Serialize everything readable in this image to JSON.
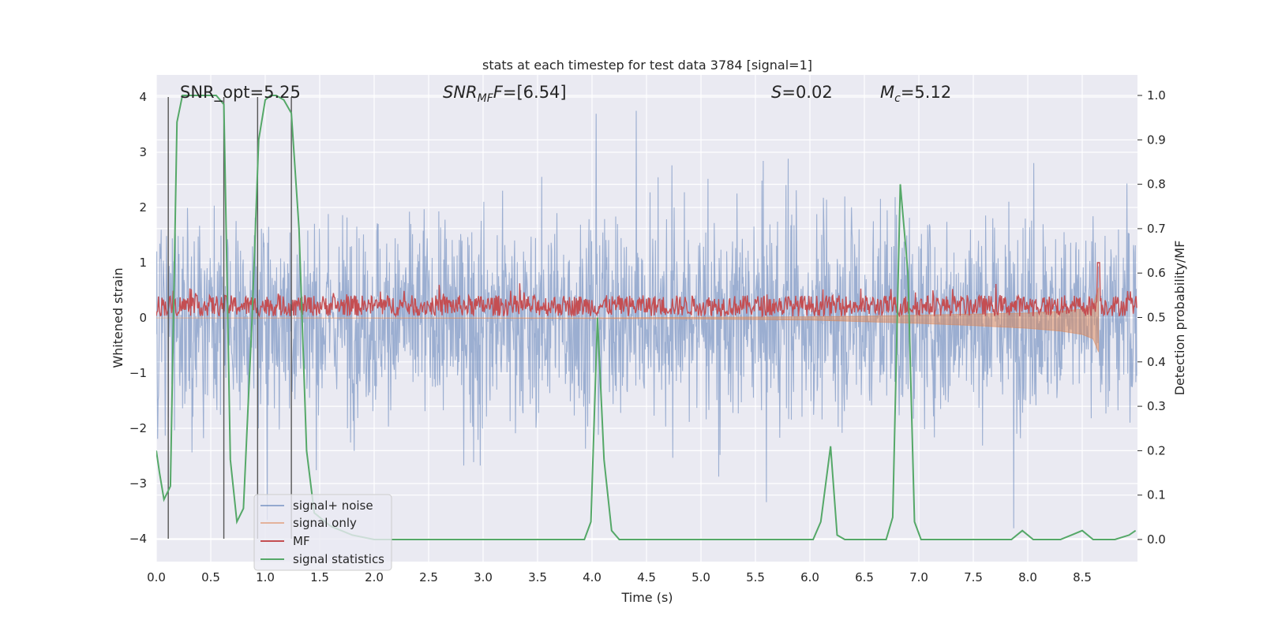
{
  "chart_data": {
    "type": "line",
    "title": "stats at each timestep for test data 3784 [signal=1]",
    "xlabel": "Time (s)",
    "ylabel": "Whitened strain",
    "ylabel_right": "Detection probability/MF",
    "xlim": [
      0.0,
      9.0
    ],
    "ylim": [
      -4.35,
      4.4
    ],
    "ylim_right": [
      -0.05,
      1.04
    ],
    "grid": true,
    "legend_position": "lower-left",
    "x_ticks": [
      "0.0",
      "0.5",
      "1.0",
      "1.5",
      "2.0",
      "2.5",
      "3.0",
      "3.5",
      "4.0",
      "4.5",
      "5.0",
      "5.5",
      "6.0",
      "6.5",
      "7.0",
      "7.5",
      "8.0",
      "8.5"
    ],
    "y_ticks": [
      "−4",
      "−3",
      "−2",
      "−1",
      "0",
      "1",
      "2",
      "3",
      "4"
    ],
    "y_ticks_right": [
      "0.0",
      "0.1",
      "0.2",
      "0.3",
      "0.4",
      "0.5",
      "0.6",
      "0.7",
      "0.8",
      "0.9",
      "1.0"
    ],
    "annotations": {
      "snr_opt": "SNR_opt=5.25",
      "snr_mf_main": "SNR",
      "snr_mf_sub": "MF",
      "snr_mf_rest": "=[6.54]",
      "s_main": "S",
      "s_value": "=0.02",
      "mc_main": "M",
      "mc_sub": "c",
      "mc_value": "=5.12"
    },
    "vertical_markers_x": [
      0.11,
      0.62,
      0.93,
      1.24
    ],
    "colors": {
      "background": "#eaeaf2",
      "grid": "#ffffff",
      "signal_noise": "#4c72b0",
      "signal_only": "#dd8452",
      "mf": "#c44e52",
      "statistics": "#55a868",
      "marker": "#555555"
    },
    "series": [
      {
        "name": "signal+ noise",
        "axis": "left",
        "description_range": [
          -3.95,
          3.75
        ],
        "x_range": [
          0.0,
          9.0
        ],
        "y_min_envelope": -2.6,
        "y_max_envelope": 2.6
      },
      {
        "name": "signal only",
        "axis": "left",
        "x": [
          0.0,
          4.0,
          5.0,
          6.0,
          6.5,
          7.0,
          7.5,
          8.0,
          8.3,
          8.5,
          8.6,
          8.65
        ],
        "y_min": [
          0.0,
          -0.01,
          -0.02,
          -0.04,
          -0.07,
          -0.1,
          -0.14,
          -0.19,
          -0.24,
          -0.3,
          -0.38,
          -0.62
        ],
        "y_max": [
          0.0,
          0.0,
          0.01,
          0.02,
          0.03,
          0.05,
          0.07,
          0.09,
          0.12,
          0.16,
          0.22,
          0.55
        ]
      },
      {
        "name": "MF",
        "axis": "left",
        "baseline": 0.22,
        "x": [
          8.65
        ],
        "y": [
          1.0
        ]
      },
      {
        "name": "signal statistics",
        "axis": "right",
        "x": [
          0.0,
          0.03,
          0.07,
          0.13,
          0.19,
          0.24,
          0.3,
          0.45,
          0.55,
          0.62,
          0.68,
          0.74,
          0.8,
          0.88,
          0.94,
          1.0,
          1.05,
          1.1,
          1.17,
          1.24,
          1.31,
          1.38,
          1.45,
          1.6,
          1.8,
          2.0,
          2.5,
          3.0,
          3.5,
          3.93,
          3.99,
          4.05,
          4.11,
          4.18,
          4.25,
          5.0,
          6.03,
          6.1,
          6.19,
          6.25,
          6.32,
          6.7,
          6.76,
          6.83,
          6.9,
          6.96,
          7.02,
          7.08,
          7.5,
          7.85,
          7.95,
          8.05,
          8.15,
          8.3,
          8.4,
          8.5,
          8.6,
          8.8,
          8.93,
          8.99
        ],
        "y": [
          0.2,
          0.15,
          0.09,
          0.12,
          0.94,
          1.0,
          1.0,
          1.0,
          1.0,
          0.98,
          0.18,
          0.04,
          0.07,
          0.5,
          0.9,
          0.99,
          1.0,
          1.0,
          0.99,
          0.96,
          0.7,
          0.2,
          0.06,
          0.03,
          0.01,
          0.0,
          0.0,
          0.0,
          0.0,
          0.0,
          0.04,
          0.5,
          0.18,
          0.02,
          0.0,
          0.0,
          0.0,
          0.04,
          0.21,
          0.01,
          0.0,
          0.0,
          0.05,
          0.8,
          0.6,
          0.04,
          0.0,
          0.0,
          0.0,
          0.0,
          0.02,
          0.0,
          0.0,
          0.0,
          0.01,
          0.02,
          0.0,
          0.0,
          0.01,
          0.02
        ]
      }
    ]
  }
}
